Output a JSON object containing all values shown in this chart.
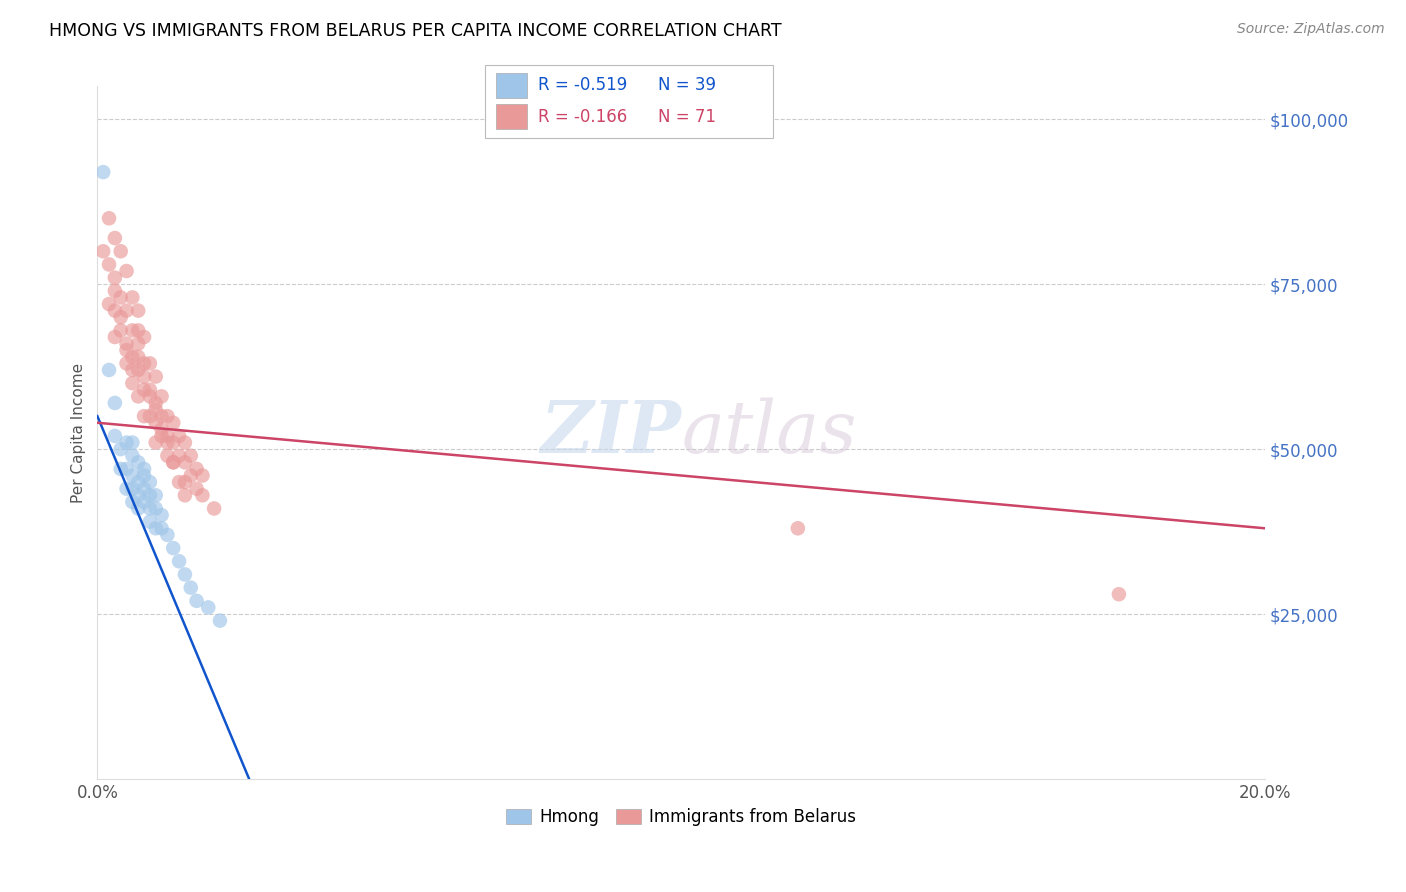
{
  "title": "HMONG VS IMMIGRANTS FROM BELARUS PER CAPITA INCOME CORRELATION CHART",
  "source": "Source: ZipAtlas.com",
  "ylabel": "Per Capita Income",
  "xlim": [
    0.0,
    0.2
  ],
  "ylim": [
    0,
    105000
  ],
  "xticks": [
    0.0,
    0.05,
    0.1,
    0.15,
    0.2
  ],
  "xticklabels": [
    "0.0%",
    "",
    "",
    "",
    "20.0%"
  ],
  "ytick_positions": [
    0,
    25000,
    50000,
    75000,
    100000
  ],
  "ytick_labels_right": [
    "",
    "$25,000",
    "$50,000",
    "$75,000",
    "$100,000"
  ],
  "watermark_zip": "ZIP",
  "watermark_atlas": "atlas",
  "legend_label1": "Hmong",
  "legend_label2": "Immigrants from Belarus",
  "legend_R1": "R = -0.519",
  "legend_N1": "N = 39",
  "legend_R2": "R = -0.166",
  "legend_N2": "N = 71",
  "color_blue": "#9fc5e8",
  "color_pink": "#ea9999",
  "color_blue_line": "#1155cc",
  "color_pink_line": "#cc4466",
  "blue_line_x0": 0.0,
  "blue_line_y0": 55000,
  "blue_line_x1": 0.026,
  "blue_line_y1": 0,
  "pink_line_x0": 0.0,
  "pink_line_y0": 54000,
  "pink_line_x1": 0.2,
  "pink_line_y1": 38000,
  "hmong_x": [
    0.001,
    0.002,
    0.003,
    0.003,
    0.004,
    0.004,
    0.005,
    0.005,
    0.005,
    0.006,
    0.006,
    0.006,
    0.006,
    0.007,
    0.007,
    0.007,
    0.007,
    0.008,
    0.008,
    0.008,
    0.009,
    0.009,
    0.009,
    0.009,
    0.01,
    0.01,
    0.01,
    0.011,
    0.011,
    0.012,
    0.013,
    0.014,
    0.015,
    0.016,
    0.017,
    0.019,
    0.021,
    0.006,
    0.008
  ],
  "hmong_y": [
    92000,
    62000,
    57000,
    52000,
    50000,
    47000,
    51000,
    47000,
    44000,
    49000,
    46000,
    44000,
    42000,
    48000,
    45000,
    43000,
    41000,
    47000,
    44000,
    42000,
    45000,
    43000,
    41000,
    39000,
    43000,
    41000,
    38000,
    40000,
    38000,
    37000,
    35000,
    33000,
    31000,
    29000,
    27000,
    26000,
    24000,
    51000,
    46000
  ],
  "belarus_x": [
    0.001,
    0.002,
    0.002,
    0.002,
    0.003,
    0.003,
    0.003,
    0.003,
    0.004,
    0.004,
    0.004,
    0.005,
    0.005,
    0.005,
    0.005,
    0.006,
    0.006,
    0.006,
    0.006,
    0.007,
    0.007,
    0.007,
    0.007,
    0.008,
    0.008,
    0.008,
    0.008,
    0.009,
    0.009,
    0.009,
    0.01,
    0.01,
    0.01,
    0.01,
    0.011,
    0.011,
    0.011,
    0.012,
    0.012,
    0.012,
    0.013,
    0.013,
    0.013,
    0.014,
    0.014,
    0.015,
    0.015,
    0.015,
    0.016,
    0.016,
    0.017,
    0.017,
    0.018,
    0.018,
    0.02,
    0.003,
    0.004,
    0.005,
    0.006,
    0.007,
    0.007,
    0.008,
    0.009,
    0.01,
    0.011,
    0.012,
    0.013,
    0.014,
    0.015,
    0.175,
    0.12
  ],
  "belarus_y": [
    80000,
    85000,
    78000,
    72000,
    82000,
    76000,
    71000,
    67000,
    80000,
    73000,
    68000,
    77000,
    71000,
    66000,
    63000,
    73000,
    68000,
    64000,
    60000,
    71000,
    66000,
    62000,
    58000,
    67000,
    63000,
    59000,
    55000,
    63000,
    59000,
    55000,
    61000,
    57000,
    54000,
    51000,
    58000,
    55000,
    52000,
    55000,
    52000,
    49000,
    54000,
    51000,
    48000,
    52000,
    49000,
    51000,
    48000,
    45000,
    49000,
    46000,
    47000,
    44000,
    46000,
    43000,
    41000,
    74000,
    70000,
    65000,
    62000,
    68000,
    64000,
    61000,
    58000,
    56000,
    53000,
    51000,
    48000,
    45000,
    43000,
    28000,
    38000
  ]
}
